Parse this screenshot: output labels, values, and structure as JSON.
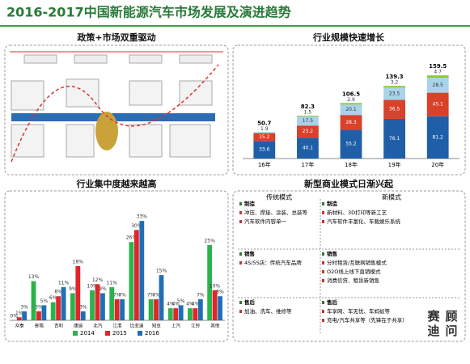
{
  "title": "2016-2017中国新能源汽车市场发展及演进趋势",
  "policy_panel": {
    "title": "政策+市场双重驱动"
  },
  "chart_data": [
    {
      "type": "stacked_bar",
      "title": "行业规模快速增长",
      "categories": [
        "16年",
        "17年",
        "18年",
        "19年",
        "20年"
      ],
      "series": [
        {
          "color": "#1f5fa8",
          "values": [
            33.6,
            40.1,
            55.2,
            76.1,
            81.2
          ]
        },
        {
          "color": "#d9412b",
          "values": [
            15.2,
            23.2,
            28.3,
            36.5,
            45.1
          ]
        },
        {
          "color": "#a9d3ea",
          "values": [
            1.9,
            17.5,
            20.1,
            23.5,
            28.5
          ]
        },
        {
          "color": "#8cc63f",
          "values": [
            null,
            1.5,
            2.9,
            3.2,
            4.7
          ]
        }
      ],
      "total_labels": [
        "50.7",
        "82.3",
        "106.5",
        "139.3",
        "159.5"
      ],
      "ylim": [
        0,
        180
      ]
    },
    {
      "type": "grouped_bar",
      "title": "行业集中度越来越高",
      "categories": [
        "众泰",
        "奇瑞",
        "吉利",
        "康迪",
        "北汽",
        "江淮",
        "比亚迪",
        "知豆",
        "上汽",
        "江铃",
        "其他"
      ],
      "series": [
        {
          "name": "2014",
          "color": "#2bb34b",
          "values": [
            0,
            13,
            6,
            9,
            10,
            11,
            26,
            7,
            4,
            4,
            25
          ],
          "value_labels": [
            "0%",
            "13%",
            "6%",
            "9%",
            "10%",
            "11%",
            "26%",
            "7%",
            "4%",
            "4%",
            "25%"
          ]
        },
        {
          "name": "2015",
          "color": "#e0252b",
          "values": [
            1,
            3,
            8,
            18,
            12,
            7,
            30,
            7,
            4,
            4,
            10
          ],
          "value_labels": [
            "1%",
            "3%",
            "8%",
            "18%",
            "12%",
            "7%",
            "30%",
            "7%",
            "4%",
            "4%",
            "10%"
          ]
        },
        {
          "name": "2016",
          "color": "#1f6fb5",
          "values": [
            3,
            5,
            11,
            3,
            9,
            7,
            33,
            15,
            5,
            7,
            8
          ],
          "value_labels": [
            "3%",
            "5%",
            "11%",
            "3%",
            "9%",
            "7%",
            "33%",
            "15%",
            "5%",
            "7%",
            "8%"
          ]
        }
      ],
      "ylim": [
        0,
        36
      ]
    }
  ],
  "table": {
    "title": "新型商业模式日渐兴起",
    "headers": [
      "传统模式",
      "新模式"
    ],
    "rows": [
      [
        [
          "制造",
          "冲压、焊接、涂装、总装等",
          "汽车软件内容单一"
        ],
        [
          "制造",
          "新材料、3D打印等新工艺",
          "汽车软件丰富化、车载娱乐系统"
        ]
      ],
      [
        [
          "销售",
          "4S/5S店：传统汽车品牌"
        ],
        [
          "销售",
          "分时租赁/互联网销售模式",
          "O2O线上线下直销模式",
          "消费信贷、租赁新销售"
        ]
      ],
      [
        [
          "售后",
          "加油、洗车、维修等"
        ],
        [
          "售后",
          "车享网、车无忧、车蚂蚁等",
          "充电/汽车共享等（先锋在于共享）"
        ]
      ]
    ]
  },
  "brand": [
    "赛",
    "顾",
    "迪",
    "问"
  ]
}
